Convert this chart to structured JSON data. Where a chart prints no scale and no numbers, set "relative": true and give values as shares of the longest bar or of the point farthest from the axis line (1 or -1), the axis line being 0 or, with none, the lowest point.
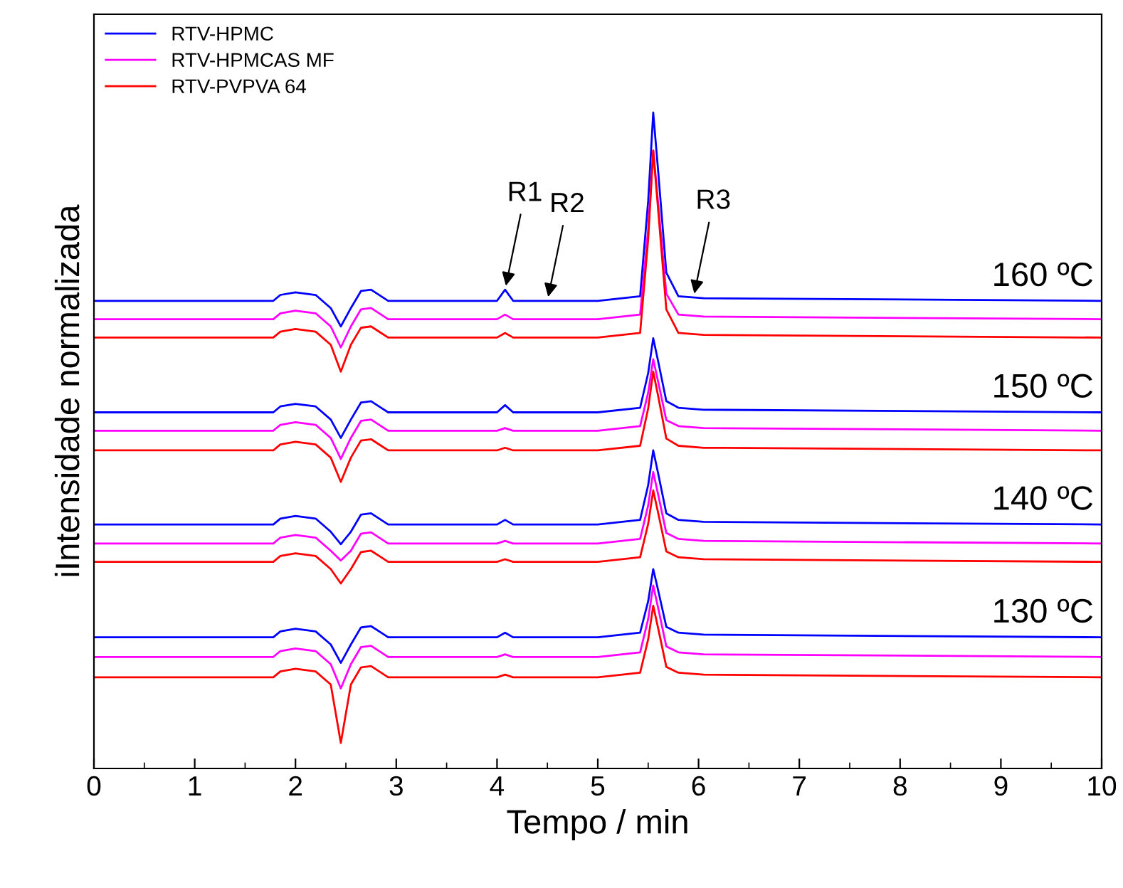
{
  "chart_data": {
    "type": "line",
    "relative": true,
    "xlabel": "Tempo / min",
    "ylabel": "iIntensidade normalizada",
    "xlim": [
      0,
      10
    ],
    "xticks": [
      0,
      1,
      2,
      3,
      4,
      5,
      6,
      7,
      8,
      9,
      10
    ],
    "tick_labels": "x",
    "grid": false,
    "legend": "top left",
    "line_style": "solid",
    "x": [
      0,
      1.78,
      1.85,
      2.0,
      2.2,
      2.35,
      2.45,
      2.55,
      2.65,
      2.75,
      2.85,
      2.92,
      3.5,
      4.0,
      4.08,
      4.16,
      5.0,
      5.42,
      5.5,
      5.55,
      5.6,
      5.68,
      5.8,
      6.05,
      10
    ],
    "series": [
      {
        "name": "RTV-HPMC",
        "color": "#0000ff",
        "values": [
          0.713,
          0.713,
          0.722,
          0.726,
          0.722,
          0.702,
          0.674,
          0.702,
          0.728,
          0.73,
          0.72,
          0.713,
          0.713,
          0.713,
          0.73,
          0.713,
          0.713,
          0.72,
          0.865,
          1.0,
          0.909,
          0.756,
          0.72,
          0.717,
          0.713
        ]
      },
      {
        "name": "RTV-HPMCAS MF",
        "color": "#ff00ff",
        "values": [
          0.685,
          0.685,
          0.694,
          0.698,
          0.694,
          0.674,
          0.642,
          0.674,
          0.7,
          0.702,
          0.692,
          0.685,
          0.685,
          0.685,
          0.692,
          0.685,
          0.685,
          0.692,
          0.822,
          0.942,
          0.859,
          0.724,
          0.692,
          0.689,
          0.685
        ]
      },
      {
        "name": "RTV-PVPVA 64",
        "color": "#ff0000",
        "values": [
          0.657,
          0.657,
          0.666,
          0.67,
          0.666,
          0.646,
          0.605,
          0.646,
          0.672,
          0.674,
          0.664,
          0.657,
          0.657,
          0.657,
          0.664,
          0.657,
          0.657,
          0.664,
          0.807,
          0.942,
          0.85,
          0.7,
          0.664,
          0.661,
          0.657
        ]
      },
      {
        "color": "#0000ff",
        "values": [
          0.543,
          0.543,
          0.552,
          0.556,
          0.552,
          0.532,
          0.504,
          0.532,
          0.558,
          0.56,
          0.55,
          0.543,
          0.543,
          0.543,
          0.554,
          0.543,
          0.543,
          0.55,
          0.603,
          0.656,
          0.62,
          0.56,
          0.55,
          0.547,
          0.543
        ]
      },
      {
        "color": "#ff00ff",
        "values": [
          0.515,
          0.515,
          0.524,
          0.528,
          0.524,
          0.504,
          0.472,
          0.504,
          0.53,
          0.532,
          0.522,
          0.515,
          0.515,
          0.515,
          0.519,
          0.515,
          0.515,
          0.522,
          0.573,
          0.624,
          0.589,
          0.531,
          0.522,
          0.519,
          0.515
        ]
      },
      {
        "color": "#ff0000",
        "values": [
          0.485,
          0.485,
          0.494,
          0.498,
          0.494,
          0.474,
          0.437,
          0.474,
          0.5,
          0.502,
          0.492,
          0.485,
          0.485,
          0.485,
          0.489,
          0.485,
          0.485,
          0.492,
          0.549,
          0.605,
          0.567,
          0.503,
          0.492,
          0.489,
          0.485
        ]
      },
      {
        "color": "#0000ff",
        "values": [
          0.372,
          0.372,
          0.381,
          0.385,
          0.381,
          0.361,
          0.342,
          0.361,
          0.387,
          0.389,
          0.379,
          0.372,
          0.372,
          0.372,
          0.379,
          0.372,
          0.372,
          0.379,
          0.432,
          0.485,
          0.449,
          0.389,
          0.379,
          0.376,
          0.372
        ]
      },
      {
        "color": "#ff00ff",
        "values": [
          0.343,
          0.343,
          0.352,
          0.356,
          0.352,
          0.332,
          0.317,
          0.332,
          0.358,
          0.36,
          0.35,
          0.343,
          0.343,
          0.343,
          0.347,
          0.343,
          0.343,
          0.35,
          0.401,
          0.452,
          0.417,
          0.359,
          0.35,
          0.347,
          0.343
        ]
      },
      {
        "color": "#ff0000",
        "values": [
          0.315,
          0.315,
          0.324,
          0.328,
          0.324,
          0.304,
          0.282,
          0.304,
          0.33,
          0.332,
          0.322,
          0.315,
          0.315,
          0.315,
          0.319,
          0.315,
          0.315,
          0.322,
          0.373,
          0.424,
          0.389,
          0.331,
          0.322,
          0.319,
          0.315
        ]
      },
      {
        "color": "#0000ff",
        "values": [
          0.2,
          0.2,
          0.209,
          0.213,
          0.209,
          0.189,
          0.161,
          0.189,
          0.215,
          0.217,
          0.207,
          0.2,
          0.2,
          0.2,
          0.207,
          0.2,
          0.2,
          0.207,
          0.255,
          0.304,
          0.271,
          0.216,
          0.207,
          0.204,
          0.2
        ]
      },
      {
        "color": "#ff00ff",
        "values": [
          0.17,
          0.17,
          0.179,
          0.183,
          0.179,
          0.159,
          0.122,
          0.159,
          0.185,
          0.187,
          0.177,
          0.17,
          0.17,
          0.17,
          0.174,
          0.17,
          0.17,
          0.177,
          0.228,
          0.279,
          0.244,
          0.186,
          0.177,
          0.174,
          0.17
        ]
      },
      {
        "color": "#ff0000",
        "values": [
          0.139,
          0.139,
          0.148,
          0.152,
          0.148,
          0.128,
          0.039,
          0.128,
          0.154,
          0.156,
          0.146,
          0.139,
          0.139,
          0.139,
          0.143,
          0.139,
          0.139,
          0.146,
          0.197,
          0.248,
          0.213,
          0.155,
          0.146,
          0.143,
          0.139
        ]
      }
    ],
    "annotations": [
      "160 ºC",
      "150 ºC",
      "140 ºC",
      "130 ºC",
      {
        "text": "R1",
        "x": 4.08,
        "y": 0.73
      },
      {
        "text": "R2",
        "x": 4.5,
        "y": 0.713
      },
      {
        "text": "R3",
        "x": 5.95,
        "y": 0.718
      }
    ]
  }
}
